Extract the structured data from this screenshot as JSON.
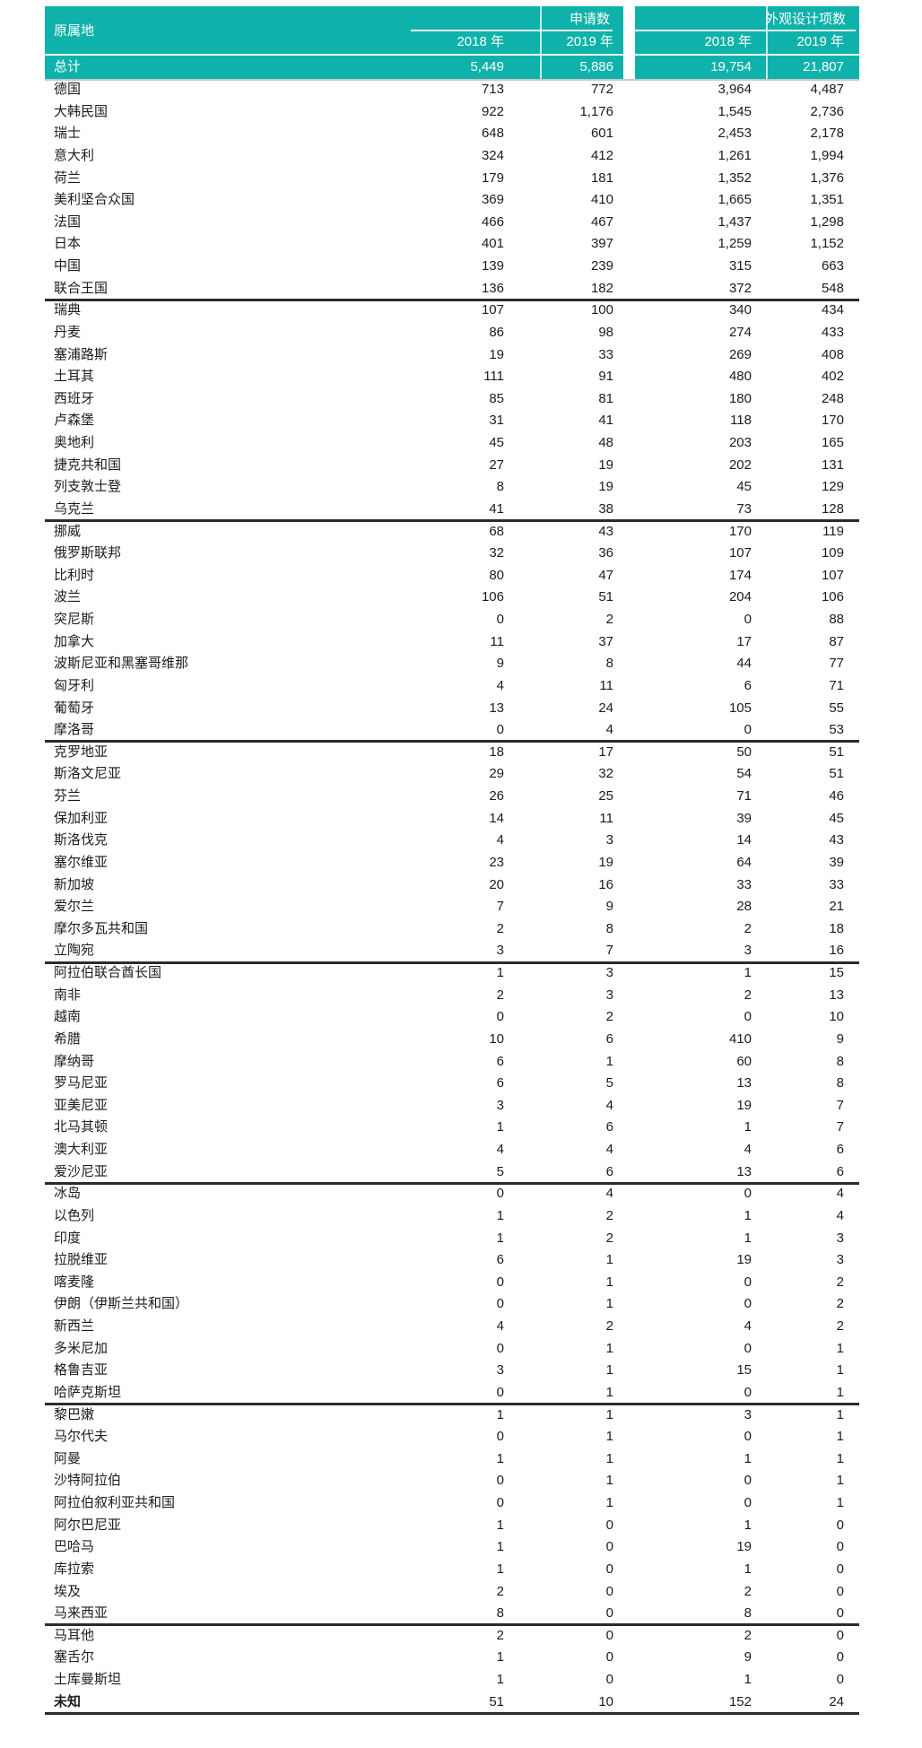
{
  "header": {
    "origin": "原属地",
    "applications_group": "申请数",
    "designs_group": "外观设计项数",
    "years": [
      "2018 年",
      "2019 年",
      "2018 年",
      "2019 年"
    ]
  },
  "total": {
    "label": "总计",
    "values": [
      "5,449",
      "5,886",
      "19,754",
      "21,807"
    ]
  },
  "rows": [
    {
      "label": "德国",
      "values": [
        "713",
        "772",
        "3,964",
        "4,487"
      ],
      "divider": false,
      "bold": false
    },
    {
      "label": "大韩民国",
      "values": [
        "922",
        "1,176",
        "1,545",
        "2,736"
      ],
      "divider": false,
      "bold": false
    },
    {
      "label": "瑞士",
      "values": [
        "648",
        "601",
        "2,453",
        "2,178"
      ],
      "divider": false,
      "bold": false
    },
    {
      "label": "意大利",
      "values": [
        "324",
        "412",
        "1,261",
        "1,994"
      ],
      "divider": false,
      "bold": false
    },
    {
      "label": "荷兰",
      "values": [
        "179",
        "181",
        "1,352",
        "1,376"
      ],
      "divider": false,
      "bold": false
    },
    {
      "label": "美利坚合众国",
      "values": [
        "369",
        "410",
        "1,665",
        "1,351"
      ],
      "divider": false,
      "bold": false
    },
    {
      "label": "法国",
      "values": [
        "466",
        "467",
        "1,437",
        "1,298"
      ],
      "divider": false,
      "bold": false
    },
    {
      "label": "日本",
      "values": [
        "401",
        "397",
        "1,259",
        "1,152"
      ],
      "divider": false,
      "bold": false
    },
    {
      "label": "中国",
      "values": [
        "139",
        "239",
        "315",
        "663"
      ],
      "divider": false,
      "bold": false
    },
    {
      "label": "联合王国",
      "values": [
        "136",
        "182",
        "372",
        "548"
      ],
      "divider": true,
      "bold": false
    },
    {
      "label": "瑞典",
      "values": [
        "107",
        "100",
        "340",
        "434"
      ],
      "divider": false,
      "bold": false
    },
    {
      "label": "丹麦",
      "values": [
        "86",
        "98",
        "274",
        "433"
      ],
      "divider": false,
      "bold": false
    },
    {
      "label": "塞浦路斯",
      "values": [
        "19",
        "33",
        "269",
        "408"
      ],
      "divider": false,
      "bold": false
    },
    {
      "label": "土耳其",
      "values": [
        "111",
        "91",
        "480",
        "402"
      ],
      "divider": false,
      "bold": false
    },
    {
      "label": "西班牙",
      "values": [
        "85",
        "81",
        "180",
        "248"
      ],
      "divider": false,
      "bold": false
    },
    {
      "label": "卢森堡",
      "values": [
        "31",
        "41",
        "118",
        "170"
      ],
      "divider": false,
      "bold": false
    },
    {
      "label": "奥地利",
      "values": [
        "45",
        "48",
        "203",
        "165"
      ],
      "divider": false,
      "bold": false
    },
    {
      "label": "捷克共和国",
      "values": [
        "27",
        "19",
        "202",
        "131"
      ],
      "divider": false,
      "bold": false
    },
    {
      "label": "列支敦士登",
      "values": [
        "8",
        "19",
        "45",
        "129"
      ],
      "divider": false,
      "bold": false
    },
    {
      "label": "乌克兰",
      "values": [
        "41",
        "38",
        "73",
        "128"
      ],
      "divider": true,
      "bold": false
    },
    {
      "label": "挪威",
      "values": [
        "68",
        "43",
        "170",
        "119"
      ],
      "divider": false,
      "bold": false
    },
    {
      "label": "俄罗斯联邦",
      "values": [
        "32",
        "36",
        "107",
        "109"
      ],
      "divider": false,
      "bold": false
    },
    {
      "label": "比利时",
      "values": [
        "80",
        "47",
        "174",
        "107"
      ],
      "divider": false,
      "bold": false
    },
    {
      "label": "波兰",
      "values": [
        "106",
        "51",
        "204",
        "106"
      ],
      "divider": false,
      "bold": false
    },
    {
      "label": "突尼斯",
      "values": [
        "0",
        "2",
        "0",
        "88"
      ],
      "divider": false,
      "bold": false
    },
    {
      "label": "加拿大",
      "values": [
        "11",
        "37",
        "17",
        "87"
      ],
      "divider": false,
      "bold": false
    },
    {
      "label": "波斯尼亚和黑塞哥维那",
      "values": [
        "9",
        "8",
        "44",
        "77"
      ],
      "divider": false,
      "bold": false
    },
    {
      "label": "匈牙利",
      "values": [
        "4",
        "11",
        "6",
        "71"
      ],
      "divider": false,
      "bold": false
    },
    {
      "label": "葡萄牙",
      "values": [
        "13",
        "24",
        "105",
        "55"
      ],
      "divider": false,
      "bold": false
    },
    {
      "label": "摩洛哥",
      "values": [
        "0",
        "4",
        "0",
        "53"
      ],
      "divider": true,
      "bold": false
    },
    {
      "label": "克罗地亚",
      "values": [
        "18",
        "17",
        "50",
        "51"
      ],
      "divider": false,
      "bold": false
    },
    {
      "label": "斯洛文尼亚",
      "values": [
        "29",
        "32",
        "54",
        "51"
      ],
      "divider": false,
      "bold": false
    },
    {
      "label": "芬兰",
      "values": [
        "26",
        "25",
        "71",
        "46"
      ],
      "divider": false,
      "bold": false
    },
    {
      "label": "保加利亚",
      "values": [
        "14",
        "11",
        "39",
        "45"
      ],
      "divider": false,
      "bold": false
    },
    {
      "label": "斯洛伐克",
      "values": [
        "4",
        "3",
        "14",
        "43"
      ],
      "divider": false,
      "bold": false
    },
    {
      "label": "塞尔维亚",
      "values": [
        "23",
        "19",
        "64",
        "39"
      ],
      "divider": false,
      "bold": false
    },
    {
      "label": "新加坡",
      "values": [
        "20",
        "16",
        "33",
        "33"
      ],
      "divider": false,
      "bold": false
    },
    {
      "label": "爱尔兰",
      "values": [
        "7",
        "9",
        "28",
        "21"
      ],
      "divider": false,
      "bold": false
    },
    {
      "label": "摩尔多瓦共和国",
      "values": [
        "2",
        "8",
        "2",
        "18"
      ],
      "divider": false,
      "bold": false
    },
    {
      "label": "立陶宛",
      "values": [
        "3",
        "7",
        "3",
        "16"
      ],
      "divider": true,
      "bold": false
    },
    {
      "label": "阿拉伯联合酋长国",
      "values": [
        "1",
        "3",
        "1",
        "15"
      ],
      "divider": false,
      "bold": false
    },
    {
      "label": "南非",
      "values": [
        "2",
        "3",
        "2",
        "13"
      ],
      "divider": false,
      "bold": false
    },
    {
      "label": "越南",
      "values": [
        "0",
        "2",
        "0",
        "10"
      ],
      "divider": false,
      "bold": false
    },
    {
      "label": "希腊",
      "values": [
        "10",
        "6",
        "410",
        "9"
      ],
      "divider": false,
      "bold": false
    },
    {
      "label": "摩纳哥",
      "values": [
        "6",
        "1",
        "60",
        "8"
      ],
      "divider": false,
      "bold": false
    },
    {
      "label": "罗马尼亚",
      "values": [
        "6",
        "5",
        "13",
        "8"
      ],
      "divider": false,
      "bold": false
    },
    {
      "label": "亚美尼亚",
      "values": [
        "3",
        "4",
        "19",
        "7"
      ],
      "divider": false,
      "bold": false
    },
    {
      "label": "北马其顿",
      "values": [
        "1",
        "6",
        "1",
        "7"
      ],
      "divider": false,
      "bold": false
    },
    {
      "label": "澳大利亚",
      "values": [
        "4",
        "4",
        "4",
        "6"
      ],
      "divider": false,
      "bold": false
    },
    {
      "label": "爱沙尼亚",
      "values": [
        "5",
        "6",
        "13",
        "6"
      ],
      "divider": true,
      "bold": false
    },
    {
      "label": "冰岛",
      "values": [
        "0",
        "4",
        "0",
        "4"
      ],
      "divider": false,
      "bold": false
    },
    {
      "label": "以色列",
      "values": [
        "1",
        "2",
        "1",
        "4"
      ],
      "divider": false,
      "bold": false
    },
    {
      "label": "印度",
      "values": [
        "1",
        "2",
        "1",
        "3"
      ],
      "divider": false,
      "bold": false
    },
    {
      "label": "拉脱维亚",
      "values": [
        "6",
        "1",
        "19",
        "3"
      ],
      "divider": false,
      "bold": false
    },
    {
      "label": "喀麦隆",
      "values": [
        "0",
        "1",
        "0",
        "2"
      ],
      "divider": false,
      "bold": false
    },
    {
      "label": "伊朗（伊斯兰共和国）",
      "values": [
        "0",
        "1",
        "0",
        "2"
      ],
      "divider": false,
      "bold": false
    },
    {
      "label": "新西兰",
      "values": [
        "4",
        "2",
        "4",
        "2"
      ],
      "divider": false,
      "bold": false
    },
    {
      "label": "多米尼加",
      "values": [
        "0",
        "1",
        "0",
        "1"
      ],
      "divider": false,
      "bold": false
    },
    {
      "label": "格鲁吉亚",
      "values": [
        "3",
        "1",
        "15",
        "1"
      ],
      "divider": false,
      "bold": false
    },
    {
      "label": "哈萨克斯坦",
      "values": [
        "0",
        "1",
        "0",
        "1"
      ],
      "divider": true,
      "bold": false
    },
    {
      "label": "黎巴嫩",
      "values": [
        "1",
        "1",
        "3",
        "1"
      ],
      "divider": false,
      "bold": false
    },
    {
      "label": "马尔代夫",
      "values": [
        "0",
        "1",
        "0",
        "1"
      ],
      "divider": false,
      "bold": false
    },
    {
      "label": "阿曼",
      "values": [
        "1",
        "1",
        "1",
        "1"
      ],
      "divider": false,
      "bold": false
    },
    {
      "label": "沙特阿拉伯",
      "values": [
        "0",
        "1",
        "0",
        "1"
      ],
      "divider": false,
      "bold": false
    },
    {
      "label": "阿拉伯叙利亚共和国",
      "values": [
        "0",
        "1",
        "0",
        "1"
      ],
      "divider": false,
      "bold": false
    },
    {
      "label": "阿尔巴尼亚",
      "values": [
        "1",
        "0",
        "1",
        "0"
      ],
      "divider": false,
      "bold": false
    },
    {
      "label": "巴哈马",
      "values": [
        "1",
        "0",
        "19",
        "0"
      ],
      "divider": false,
      "bold": false
    },
    {
      "label": "库拉索",
      "values": [
        "1",
        "0",
        "1",
        "0"
      ],
      "divider": false,
      "bold": false
    },
    {
      "label": "埃及",
      "values": [
        "2",
        "0",
        "2",
        "0"
      ],
      "divider": false,
      "bold": false
    },
    {
      "label": "马来西亚",
      "values": [
        "8",
        "0",
        "8",
        "0"
      ],
      "divider": true,
      "bold": false
    },
    {
      "label": "马耳他",
      "values": [
        "2",
        "0",
        "2",
        "0"
      ],
      "divider": false,
      "bold": false
    },
    {
      "label": "塞舌尔",
      "values": [
        "1",
        "0",
        "9",
        "0"
      ],
      "divider": false,
      "bold": false
    },
    {
      "label": "土库曼斯坦",
      "values": [
        "1",
        "0",
        "1",
        "0"
      ],
      "divider": false,
      "bold": false
    },
    {
      "label": "未知",
      "values": [
        "51",
        "10",
        "152",
        "24"
      ],
      "divider": true,
      "bold": true
    }
  ],
  "colors": {
    "header_teal": "#0FB2AA",
    "header_text": "#FFFFFF",
    "body_text": "#1C1C1C",
    "divider_line": "#2B2B2B"
  }
}
